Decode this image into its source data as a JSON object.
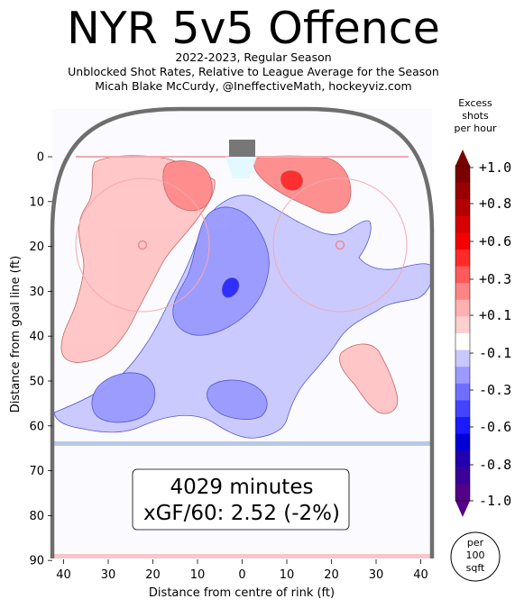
{
  "header": {
    "title": "NYR 5v5 Offence",
    "subtitle_lines": [
      "2022-2023, Regular Season",
      "Unblocked Shot Rates, Relative to League Average for the Season",
      "Micah Blake McCurdy, @IneffectiveMath, hockeyviz.com"
    ]
  },
  "chart_data": {
    "type": "heatmap",
    "xlabel": "Distance from centre of rink (ft)",
    "ylabel": "Distance from goal line (ft)",
    "x_ticks": [
      "40",
      "30",
      "20",
      "10",
      "0",
      "10",
      "20",
      "30",
      "40"
    ],
    "y_ticks": [
      "0",
      "10",
      "20",
      "30",
      "40",
      "50",
      "60",
      "70",
      "80",
      "90"
    ],
    "xlim": [
      -42.5,
      42.5
    ],
    "ylim": [
      -11,
      90
    ],
    "grid": false,
    "stats_box": {
      "minutes_line": "4029 minutes",
      "xgf_line": "xGF/60: 2.52 (-2%)"
    },
    "colorbar": {
      "title_lines": [
        "Excess",
        "shots",
        "per hour"
      ],
      "tick_labels": [
        "+1.0",
        "+0.8",
        "+0.6",
        "+0.3",
        "+0.1",
        "-0.1",
        "-0.3",
        "-0.6",
        "-0.8",
        "-1.0"
      ],
      "colors": [
        "#7b0000",
        "#990000",
        "#b30000",
        "#d60000",
        "#f50000",
        "#ff2a2a",
        "#ff5a5a",
        "#ff8585",
        "#ffb0b0",
        "#ffd0d0",
        "#ffffff",
        "#c8c8ff",
        "#9a9aff",
        "#6f6fff",
        "#4444ff",
        "#1a1aff",
        "#0000d6",
        "#2200b0",
        "#3a0098",
        "#550088"
      ],
      "units_note": [
        "per",
        "100",
        "sqft"
      ]
    },
    "regions": [
      {
        "level": 0.1,
        "note": "left faceoff zone excess",
        "x_range": [
          -41,
          -5
        ],
        "y_range": [
          0,
          48
        ]
      },
      {
        "level": 0.3,
        "note": "left slot high",
        "x_range": [
          -17,
          -7
        ],
        "y_range": [
          1,
          12
        ]
      },
      {
        "level": 0.3,
        "note": "right point of crease",
        "x_range": [
          2,
          23
        ],
        "y_range": [
          0,
          13
        ]
      },
      {
        "level": 0.6,
        "note": "right hot spot",
        "x_range": [
          9,
          14
        ],
        "y_range": [
          3,
          8
        ]
      },
      {
        "level": 0.1,
        "note": "right lower blob",
        "x_range": [
          21,
          35
        ],
        "y_range": [
          43,
          58
        ]
      },
      {
        "level": -0.1,
        "note": "large deficit area",
        "x_range": [
          -42.5,
          42.5
        ],
        "y_range": [
          5,
          62
        ]
      },
      {
        "level": -0.3,
        "note": "slot deficit",
        "x_range": [
          -15,
          6
        ],
        "y_range": [
          13,
          42
        ]
      },
      {
        "level": -0.6,
        "note": "centre cold spot",
        "x_range": [
          -3,
          1
        ],
        "y_range": [
          27,
          32
        ]
      },
      {
        "level": -0.3,
        "note": "low left blob",
        "x_range": [
          -33,
          -19
        ],
        "y_range": [
          47,
          58
        ]
      },
      {
        "level": -0.3,
        "note": "low centre blob",
        "x_range": [
          -8,
          6
        ],
        "y_range": [
          50,
          58
        ]
      }
    ]
  }
}
